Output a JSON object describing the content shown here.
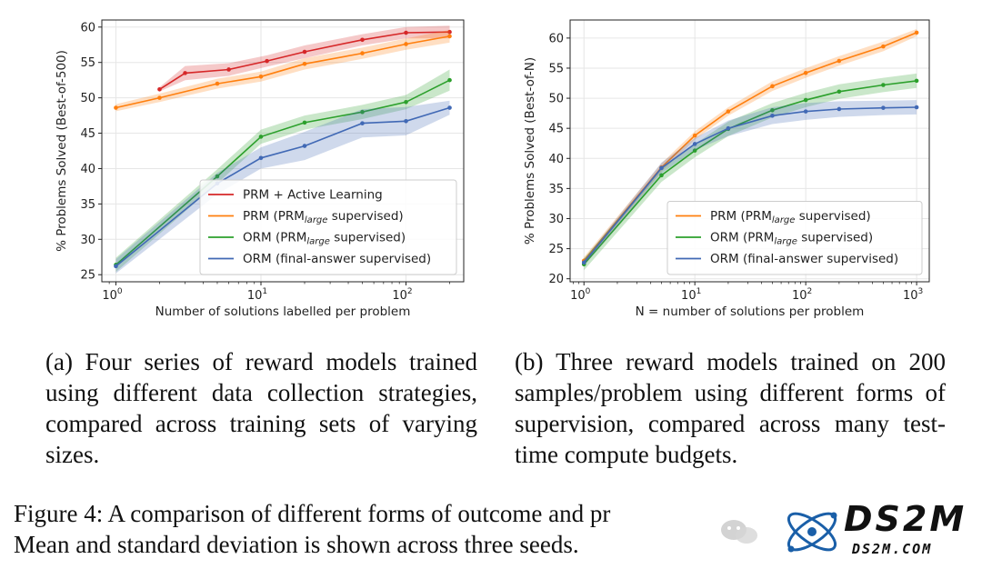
{
  "charts": [
    {
      "type": "line",
      "xscale": "log",
      "xlim": [
        0.8,
        250
      ],
      "ylim": [
        24,
        61
      ],
      "xlabel": "Number of solutions labelled per problem",
      "ylabel": "% Problems Solved (Best-of-500)",
      "xticks": [
        {
          "value": 1,
          "exp": "0"
        },
        {
          "value": 10,
          "exp": "1"
        },
        {
          "value": 100,
          "exp": "2"
        }
      ],
      "yticks": [
        25,
        30,
        35,
        40,
        45,
        50,
        55,
        60
      ],
      "grid": true,
      "legend_position": "lower-right",
      "series": [
        {
          "name": "PRM + Active Learning",
          "color": "#d62728",
          "x": [
            2,
            3,
            6,
            11,
            20,
            50,
            100,
            200
          ],
          "y": [
            51.2,
            53.5,
            54.0,
            55.2,
            56.5,
            58.2,
            59.2,
            59.3
          ],
          "std": [
            0.3,
            1.0,
            0.9,
            0.8,
            0.9,
            0.8,
            0.8,
            0.9
          ]
        },
        {
          "name": "PRM (PRM_large supervised)",
          "color": "#ff7f0e",
          "x": [
            1,
            2,
            5,
            10,
            20,
            50,
            100,
            200
          ],
          "y": [
            48.6,
            50.0,
            52.0,
            53.0,
            54.8,
            56.3,
            57.6,
            58.7
          ],
          "std": [
            0.5,
            0.6,
            0.7,
            0.7,
            0.8,
            0.8,
            0.8,
            0.9
          ]
        },
        {
          "name": "ORM (PRM_large supervised)",
          "color": "#2ca02c",
          "x": [
            1,
            5,
            10,
            20,
            50,
            100,
            200
          ],
          "y": [
            26.4,
            38.9,
            44.5,
            46.5,
            48.0,
            49.4,
            52.5
          ],
          "std": [
            1.0,
            1.0,
            1.0,
            1.0,
            1.0,
            1.0,
            1.5
          ]
        },
        {
          "name": "ORM (final-answer supervised)",
          "color": "#4169b5",
          "x": [
            1,
            5,
            10,
            20,
            50,
            100,
            200
          ],
          "y": [
            26.2,
            37.9,
            41.5,
            43.2,
            46.4,
            46.7,
            48.6
          ],
          "std": [
            1.0,
            1.5,
            1.5,
            2.0,
            2.0,
            2.0,
            1.0
          ]
        }
      ]
    },
    {
      "type": "line",
      "xscale": "log",
      "xlim": [
        0.75,
        1300
      ],
      "ylim": [
        19.5,
        63
      ],
      "xlabel": "N = number of solutions per problem",
      "ylabel": "% Problems Solved (Best-of-N)",
      "xticks": [
        {
          "value": 1,
          "exp": "0"
        },
        {
          "value": 10,
          "exp": "1"
        },
        {
          "value": 100,
          "exp": "2"
        },
        {
          "value": 1000,
          "exp": "3"
        }
      ],
      "yticks": [
        20,
        25,
        30,
        35,
        40,
        45,
        50,
        55,
        60
      ],
      "grid": true,
      "legend_position": "lower-right",
      "series": [
        {
          "name": "PRM (PRM_large supervised)",
          "color": "#ff7f0e",
          "x": [
            1,
            5,
            10,
            20,
            50,
            100,
            200,
            500,
            1000
          ],
          "y": [
            23.0,
            38.5,
            43.8,
            47.8,
            52.0,
            54.2,
            56.2,
            58.6,
            60.9
          ],
          "std": [
            0.6,
            0.7,
            0.7,
            0.7,
            0.8,
            0.8,
            0.8,
            0.8,
            0.6
          ]
        },
        {
          "name": "ORM (PRM_large supervised)",
          "color": "#2ca02c",
          "x": [
            1,
            5,
            10,
            20,
            50,
            100,
            200,
            500,
            1000
          ],
          "y": [
            22.4,
            37.2,
            41.3,
            44.9,
            48.0,
            49.7,
            51.1,
            52.2,
            52.9
          ],
          "std": [
            1.0,
            1.1,
            1.1,
            1.2,
            1.2,
            1.2,
            1.2,
            1.2,
            1.2
          ]
        },
        {
          "name": "ORM (final-answer supervised)",
          "color": "#4169b5",
          "x": [
            1,
            5,
            10,
            20,
            50,
            100,
            200,
            500,
            1000
          ],
          "y": [
            22.7,
            38.4,
            42.4,
            45.0,
            47.1,
            47.8,
            48.2,
            48.4,
            48.5
          ],
          "std": [
            0.5,
            0.9,
            1.0,
            1.3,
            1.4,
            1.4,
            1.3,
            1.2,
            1.2
          ]
        }
      ]
    }
  ],
  "captions": {
    "a": "(a) Four series of reward models trained using different data collection strategies, compared across training sets of varying sizes.",
    "b": "(b) Three reward models trained on 200 samples/problem using different forms of supervision, compared across many test-time compute budgets."
  },
  "figure_caption": {
    "line1": "Figure 4: A comparison of different forms of outcome and pr",
    "line2": "Mean and standard deviation is shown across three seeds."
  },
  "logo": {
    "main": "DS2M",
    "sub": "DS2M.COM",
    "icon": "atom-orbit-icon"
  },
  "watermark": {
    "icon": "wechat-icon"
  }
}
